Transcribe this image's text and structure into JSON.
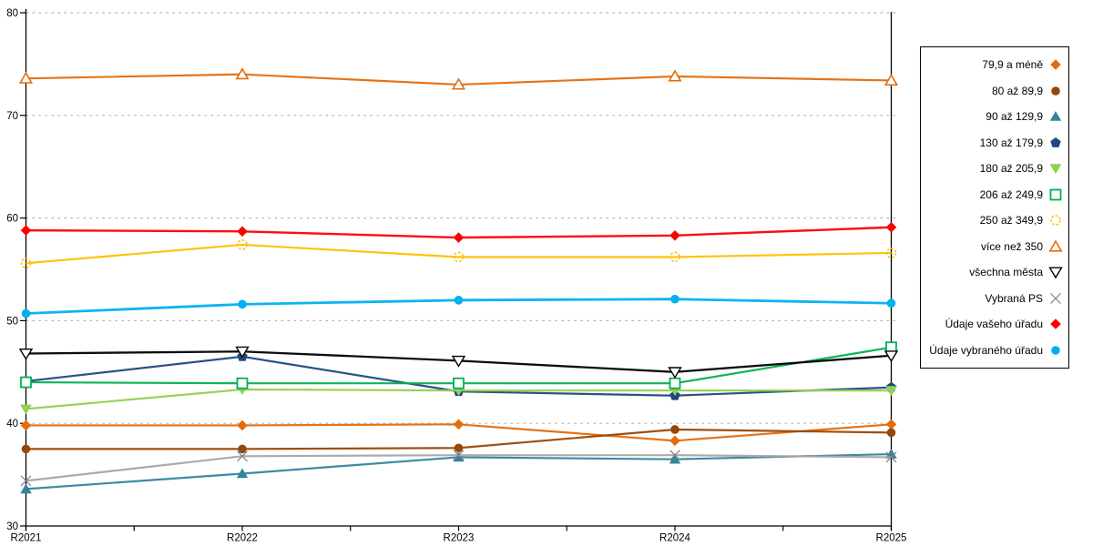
{
  "chart_data": {
    "type": "line",
    "title": "",
    "xlabel": "",
    "ylabel": "",
    "categories": [
      "R2021",
      "R2022",
      "R2023",
      "R2024",
      "R2025"
    ],
    "ylim": [
      30,
      80
    ],
    "yticks": [
      30,
      40,
      50,
      60,
      70,
      80
    ],
    "grid": "horizontal-dotted",
    "gridline_color": "#B3B3B3",
    "axis_color": "#000000",
    "legend_position": "right-box",
    "series": [
      {
        "name": "79,9 a méně",
        "color": "#E46C0A",
        "marker": "diamond",
        "marker_fill": "filled",
        "values": [
          39.8,
          39.8,
          39.9,
          38.3,
          39.9
        ]
      },
      {
        "name": "80 až 89,9",
        "color": "#974706",
        "marker": "circle",
        "marker_fill": "filled",
        "values": [
          37.5,
          37.5,
          37.6,
          39.4,
          39.1
        ]
      },
      {
        "name": "90 až 129,9",
        "color": "#31859C",
        "marker": "triangle-up",
        "marker_fill": "filled",
        "values": [
          33.6,
          35.1,
          36.7,
          36.5,
          37.0
        ]
      },
      {
        "name": "130 až 179,9",
        "color": "#1F497D",
        "marker": "pentagon",
        "marker_fill": "filled",
        "values": [
          44.1,
          46.5,
          43.1,
          42.7,
          43.5
        ]
      },
      {
        "name": "180 až 205,9",
        "color": "#92D050",
        "marker": "triangle-down",
        "marker_fill": "filled",
        "values": [
          41.4,
          43.3,
          43.2,
          43.2,
          43.2
        ]
      },
      {
        "name": "206 až 249,9",
        "color": "#00B050",
        "marker": "square",
        "marker_fill": "open",
        "values": [
          44.0,
          43.9,
          43.9,
          43.9,
          47.4
        ]
      },
      {
        "name": "250 až 349,9",
        "color": "#FFC000",
        "marker": "circle-dashed",
        "marker_fill": "open",
        "values": [
          55.6,
          57.4,
          56.2,
          56.2,
          56.6
        ]
      },
      {
        "name": "více než 350",
        "color": "#E46C0A",
        "marker": "triangle-up",
        "marker_fill": "open",
        "values": [
          73.6,
          74.0,
          73.0,
          73.8,
          73.4
        ]
      },
      {
        "name": "všechna města",
        "color": "#000000",
        "marker": "triangle-down",
        "marker_fill": "open",
        "values": [
          46.8,
          47.0,
          46.1,
          45.0,
          46.6
        ]
      },
      {
        "name": "Vybraná PS",
        "color": "#A6A6A6",
        "marker": "x",
        "marker_color": "#7F7F7F",
        "marker_fill": "open",
        "values": [
          34.4,
          36.8,
          36.9,
          36.9,
          36.7
        ]
      },
      {
        "name": "Údaje vašeho úřadu",
        "color": "#FF0000",
        "marker": "diamond",
        "marker_fill": "filled",
        "values": [
          58.8,
          58.7,
          58.1,
          58.3,
          59.1
        ]
      },
      {
        "name": "Údaje vybraného úřadu",
        "color": "#00B0F0",
        "marker": "circle",
        "marker_fill": "filled",
        "values": [
          50.7,
          51.6,
          52.0,
          52.1,
          51.7
        ]
      }
    ]
  }
}
